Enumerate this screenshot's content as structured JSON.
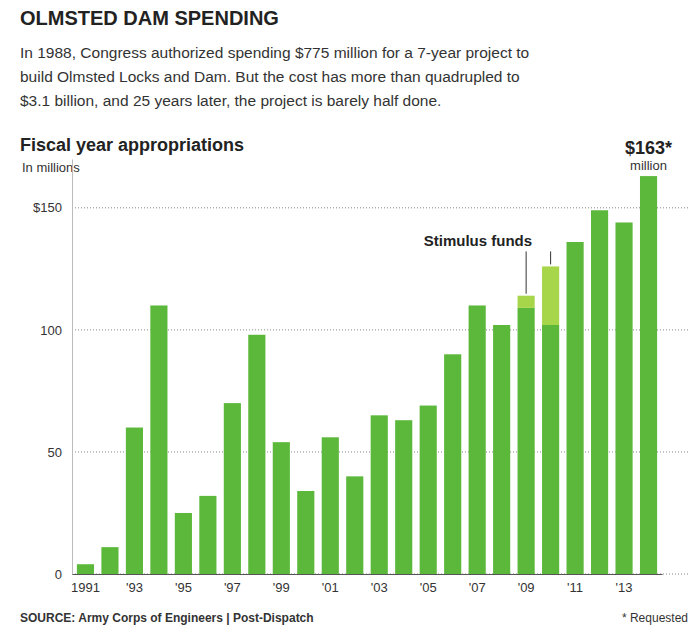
{
  "chart_data": {
    "type": "bar",
    "title": "OLMSTED DAM SPENDING",
    "subtitle": [
      "In 1988, Congress authorized spending $775 million for a 7-year project to",
      "build Olmsted Locks and Dam. But the cost has more than quadrupled to",
      "$3.1 billion, and 25 years later, the project is barely half done."
    ],
    "heading": "Fiscal year appropriations",
    "y_label": "In millions",
    "categories": [
      "1991",
      null,
      "'93",
      null,
      "'95",
      null,
      "'97",
      null,
      "'99",
      null,
      "'01",
      null,
      "'03",
      null,
      "'05",
      null,
      "'07",
      null,
      "'09",
      null,
      "'11",
      null,
      "'13",
      null
    ],
    "series": [
      {
        "color": "#5cb83a",
        "values": [
          4,
          11,
          60,
          110,
          25,
          32,
          70,
          98,
          54,
          34,
          56,
          40,
          65,
          63,
          69,
          90,
          110,
          102,
          109,
          102,
          136,
          149,
          144,
          163
        ],
        "value_labels": [
          null,
          null,
          null,
          null,
          null,
          null,
          null,
          null,
          null,
          null,
          null,
          null,
          null,
          null,
          null,
          null,
          null,
          null,
          null,
          null,
          null,
          null,
          null,
          "$163*"
        ]
      },
      {
        "name": "Stimulus funds",
        "color": "#a8d64b",
        "values": [
          null,
          null,
          null,
          null,
          null,
          null,
          null,
          null,
          null,
          null,
          null,
          null,
          null,
          null,
          null,
          null,
          null,
          null,
          5,
          24,
          null,
          null,
          null,
          null
        ]
      }
    ],
    "stacked": true,
    "data_labels": true,
    "annotations": [
      "million"
    ],
    "ylim": [
      0,
      170
    ],
    "yticks": [
      0,
      50,
      100,
      {
        "value": 150,
        "label": "$150"
      }
    ],
    "grid": true,
    "source": "SOURCE: Army Corps of Engineers | Post-Dispatch",
    "footnote": "* Requested"
  }
}
